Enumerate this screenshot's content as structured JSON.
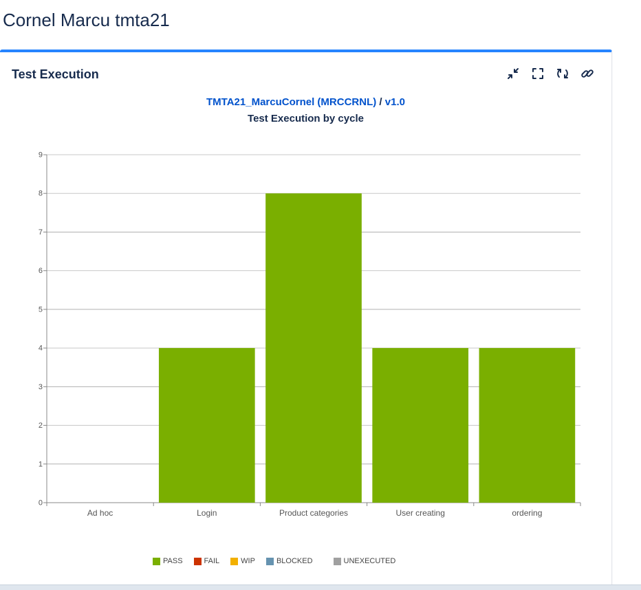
{
  "page": {
    "title": "Cornel Marcu tmta21"
  },
  "gadget": {
    "title": "Test Execution"
  },
  "toolbar": {
    "buttons": [
      {
        "icon": "minimize-icon"
      },
      {
        "icon": "fullscreen-icon"
      },
      {
        "icon": "refresh-icon"
      },
      {
        "icon": "link-icon"
      }
    ]
  },
  "chart_header": {
    "project": "TMTA21_MarcuCornel (MRCCRNL)",
    "separator": " / ",
    "version": "v1.0"
  },
  "chart_data": {
    "type": "bar",
    "title": "Test Execution by cycle",
    "categories": [
      "Ad hoc",
      "Login",
      "Product categories",
      "User creating",
      "ordering"
    ],
    "series": [
      {
        "name": "PASS",
        "color": "#7aaf00",
        "values": [
          0,
          4,
          8,
          4,
          4
        ]
      },
      {
        "name": "FAIL",
        "color": "#cc3300",
        "values": [
          0,
          0,
          0,
          0,
          0
        ]
      },
      {
        "name": "WIP",
        "color": "#f2b000",
        "values": [
          0,
          0,
          0,
          0,
          0
        ]
      },
      {
        "name": "BLOCKED",
        "color": "#6693b0",
        "values": [
          0,
          0,
          0,
          0,
          0
        ]
      },
      {
        "name": "UNEXECUTED",
        "color": "#a0a0a0",
        "values": [
          0,
          0,
          0,
          0,
          0
        ]
      }
    ],
    "ylim": [
      0,
      9
    ],
    "yticks": [
      "0",
      "1",
      "2",
      "3",
      "4",
      "5",
      "6",
      "7",
      "8",
      "9"
    ],
    "xlabel": "",
    "ylabel": "",
    "grid": true,
    "legend_position": "bottom"
  }
}
